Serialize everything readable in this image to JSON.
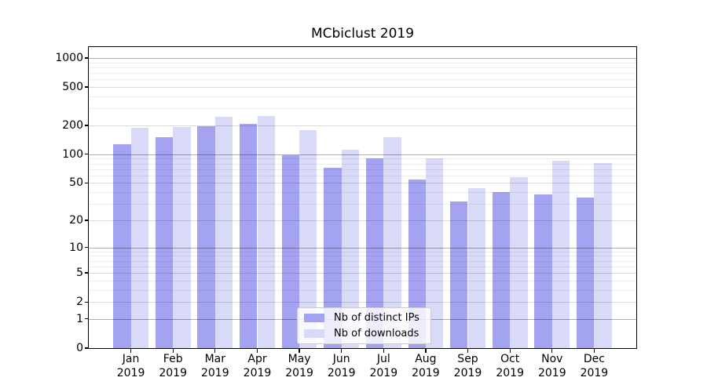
{
  "title": "MCbiclust 2019",
  "chart_data": {
    "type": "bar",
    "title": "MCbiclust 2019",
    "categories": [
      "Jan 2019",
      "Feb 2019",
      "Mar 2019",
      "Apr 2019",
      "May 2019",
      "Jun 2019",
      "Jul 2019",
      "Aug 2019",
      "Sep 2019",
      "Oct 2019",
      "Nov 2019",
      "Dec 2019"
    ],
    "series": [
      {
        "name": "Nb of distinct IPs",
        "color": "#a3a3f2",
        "values": [
          127,
          151,
          197,
          206,
          98,
          73,
          91,
          54,
          32,
          40,
          38,
          35
        ]
      },
      {
        "name": "Nb of downloads",
        "color": "#d9d9f8",
        "values": [
          188,
          192,
          244,
          250,
          180,
          112,
          152,
          90,
          44,
          58,
          86,
          81
        ]
      }
    ],
    "yscale": "log10(1+x)",
    "ylim": [
      0,
      1300
    ],
    "yticks": [
      0,
      1,
      2,
      5,
      10,
      20,
      50,
      100,
      200,
      500,
      1000
    ],
    "grid": "horizontal, major and minor log lines",
    "legend_position": "bottom-center",
    "style": {
      "grid_decade_color": "rgba(0,0,0,0.32)",
      "grid_major_color": "rgba(0,0,0,0.15)",
      "grid_minor_color": "rgba(0,0,0,0.07)",
      "spine_color": "#000000",
      "background": "#ffffff"
    }
  }
}
